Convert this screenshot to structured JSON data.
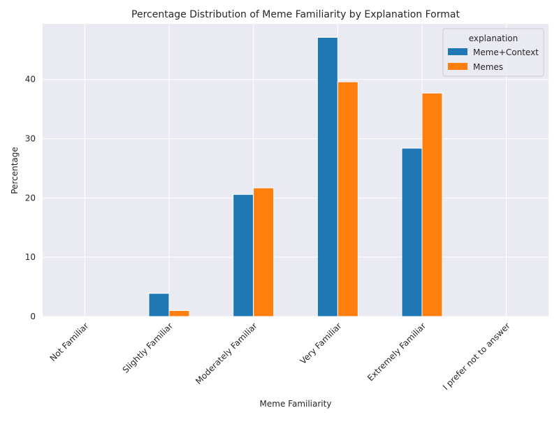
{
  "chart_data": {
    "type": "bar",
    "title": "Percentage Distribution of Meme Familiarity by Explanation Format",
    "xlabel": "Meme Familiarity",
    "ylabel": "Percentage",
    "categories": [
      "Not Familiar",
      "Slightly Familiar",
      "Moderately Familiar",
      "Very Familiar",
      "Extremely Familiar",
      "I prefer not to answer"
    ],
    "series": [
      {
        "name": "Meme+Context",
        "color": "#1f77b4",
        "values": [
          0,
          3.9,
          20.6,
          47.1,
          28.4,
          0
        ]
      },
      {
        "name": "Memes",
        "color": "#ff7f0e",
        "values": [
          0,
          1.0,
          21.7,
          39.6,
          37.7,
          0
        ]
      }
    ],
    "ylim": [
      0,
      49.4
    ],
    "yticks": [
      0,
      10,
      20,
      30,
      40
    ],
    "grid": true,
    "legend": {
      "title": "explanation",
      "position": "top-right"
    }
  }
}
